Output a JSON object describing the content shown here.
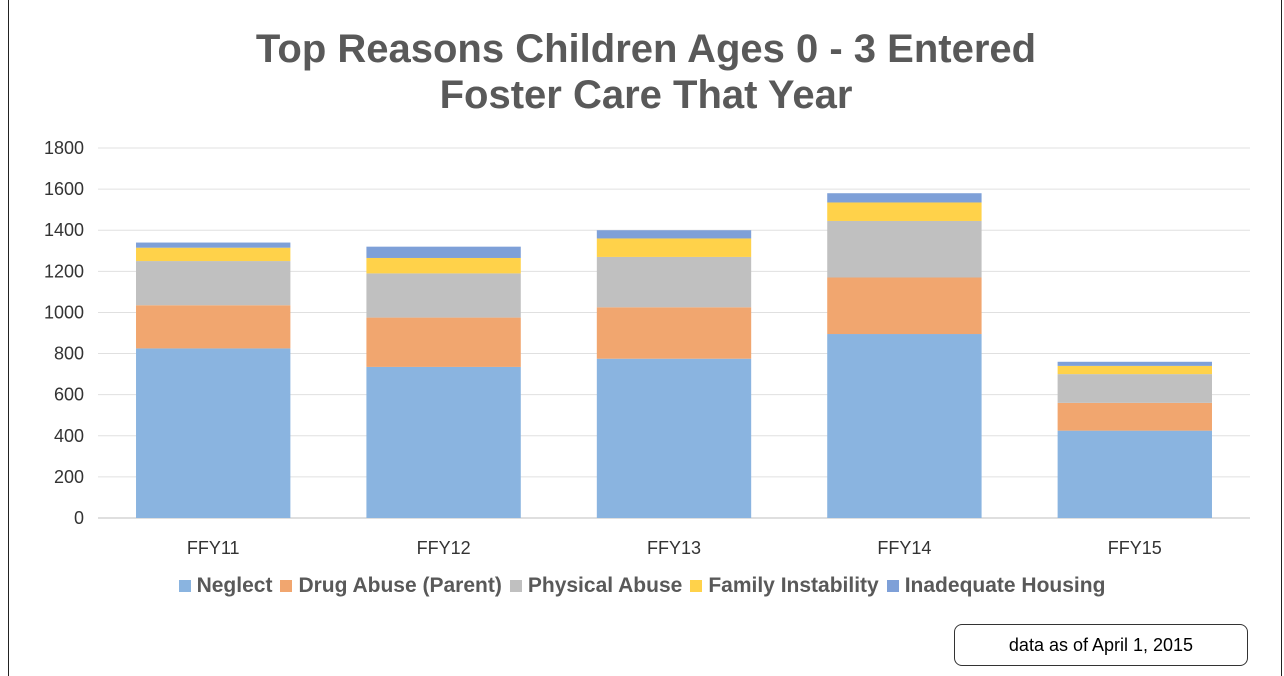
{
  "chart_data": {
    "type": "bar",
    "stacked": true,
    "title_lines": [
      "Top Reasons Children Ages 0 - 3 Entered",
      "Foster Care That Year"
    ],
    "categories": [
      "FFY11",
      "FFY12",
      "FFY13",
      "FFY14",
      "FFY15"
    ],
    "series": [
      {
        "name": "Neglect",
        "color": "#8ab4e0",
        "values": [
          825,
          735,
          775,
          895,
          425
        ]
      },
      {
        "name": "Drug Abuse (Parent)",
        "color": "#f1a66f",
        "values": [
          210,
          240,
          250,
          275,
          135
        ]
      },
      {
        "name": "Physical Abuse",
        "color": "#c0c0c0",
        "values": [
          215,
          215,
          245,
          275,
          140
        ]
      },
      {
        "name": "Family Instability",
        "color": "#ffd24a",
        "values": [
          65,
          75,
          90,
          90,
          40
        ]
      },
      {
        "name": "Inadequate Housing",
        "color": "#7ea0d8",
        "values": [
          25,
          55,
          40,
          45,
          20
        ]
      }
    ],
    "ylim": [
      0,
      1800
    ],
    "yticks": [
      0,
      200,
      400,
      600,
      800,
      1000,
      1200,
      1400,
      1600,
      1800
    ],
    "grid": true,
    "legend_position": "bottom"
  },
  "note": "data as of April 1, 2015"
}
